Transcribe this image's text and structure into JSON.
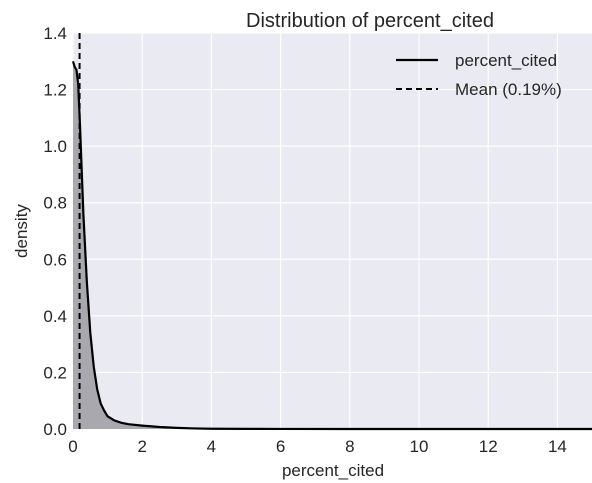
{
  "chart_data": {
    "type": "area",
    "title": "Distribution of percent_cited",
    "xlabel": "percent_cited",
    "ylabel": "density",
    "xlim": [
      0,
      15
    ],
    "ylim": [
      0,
      1.4
    ],
    "xticks": [
      0,
      2,
      4,
      6,
      8,
      10,
      12,
      14
    ],
    "yticks": [
      0.0,
      0.2,
      0.4,
      0.6,
      0.8,
      1.0,
      1.2,
      1.4
    ],
    "xtick_labels": [
      "0",
      "2",
      "4",
      "6",
      "8",
      "10",
      "12",
      "14"
    ],
    "ytick_labels": [
      "0.0",
      "0.2",
      "0.4",
      "0.6",
      "0.8",
      "1.0",
      "1.2",
      "1.4"
    ],
    "grid": true,
    "legend_position": "top-right",
    "background_color": "#eaeaf2",
    "fill_color": "#a8a8ae",
    "line_color": "#000000",
    "series": [
      {
        "name": "percent_cited",
        "style": "solid",
        "x": [
          0.0,
          0.05,
          0.1,
          0.15,
          0.2,
          0.25,
          0.3,
          0.4,
          0.5,
          0.6,
          0.7,
          0.8,
          0.9,
          1.0,
          1.2,
          1.4,
          1.6,
          2.0,
          2.5,
          3.0,
          3.5,
          4.0,
          5.0,
          6.0,
          8.0,
          10.0,
          12.0,
          15.0
        ],
        "y": [
          1.3,
          1.28,
          1.27,
          1.22,
          1.08,
          0.92,
          0.76,
          0.52,
          0.34,
          0.22,
          0.14,
          0.09,
          0.065,
          0.045,
          0.03,
          0.022,
          0.017,
          0.012,
          0.007,
          0.004,
          0.002,
          0.001,
          0.0005,
          0.0002,
          0.0001,
          0.0,
          0.0,
          0.0
        ]
      }
    ],
    "mean": {
      "name": "Mean (0.19%)",
      "style": "dashed",
      "x": 0.19
    }
  }
}
